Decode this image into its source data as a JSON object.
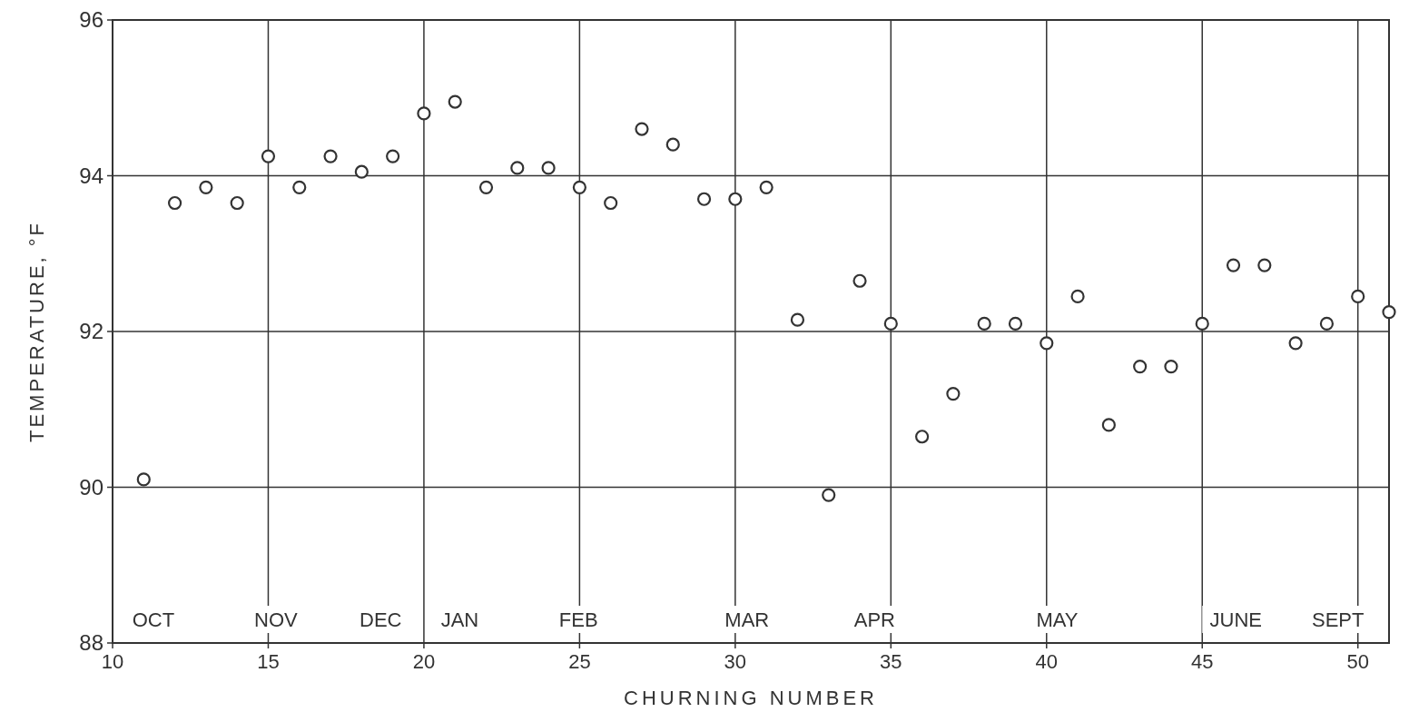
{
  "chart_data": {
    "type": "scatter",
    "xlabel": "CHURNING NUMBER",
    "ylabel": "TEMPERATURE, °F",
    "x": [
      11,
      12,
      13,
      14,
      15,
      16,
      17,
      18,
      19,
      20,
      21,
      22,
      23,
      24,
      25,
      26,
      27,
      28,
      29,
      30,
      31,
      32,
      33,
      34,
      35,
      36,
      37,
      38,
      39,
      40,
      41,
      42,
      43,
      44,
      45,
      46,
      47,
      48,
      49,
      50,
      51
    ],
    "series": [
      {
        "color": "#333333",
        "values": [
          90.1,
          93.65,
          93.85,
          93.65,
          94.25,
          93.85,
          94.25,
          94.05,
          94.25,
          94.8,
          94.95,
          93.85,
          94.1,
          94.1,
          93.85,
          93.65,
          94.6,
          94.4,
          93.7,
          93.7,
          93.85,
          92.15,
          89.9,
          92.65,
          92.1,
          90.65,
          91.2,
          92.1,
          92.1,
          91.85,
          92.45,
          90.8,
          91.55,
          91.55,
          92.1,
          92.85,
          92.85,
          91.85,
          92.1,
          92.45,
          92.25
        ]
      }
    ],
    "xlim": [
      10,
      51
    ],
    "xticks": [
      10,
      15,
      20,
      25,
      30,
      35,
      40,
      45,
      50
    ],
    "ylim": [
      88,
      96
    ],
    "yticks": [
      88,
      90,
      92,
      94,
      96
    ],
    "grid": true,
    "marker": "circle",
    "annotations": [
      "OCT",
      "NOV",
      "DEC",
      "JAN",
      "FEB",
      "MAR",
      "APR",
      "MAY",
      "JUNE",
      "SEPT"
    ]
  }
}
